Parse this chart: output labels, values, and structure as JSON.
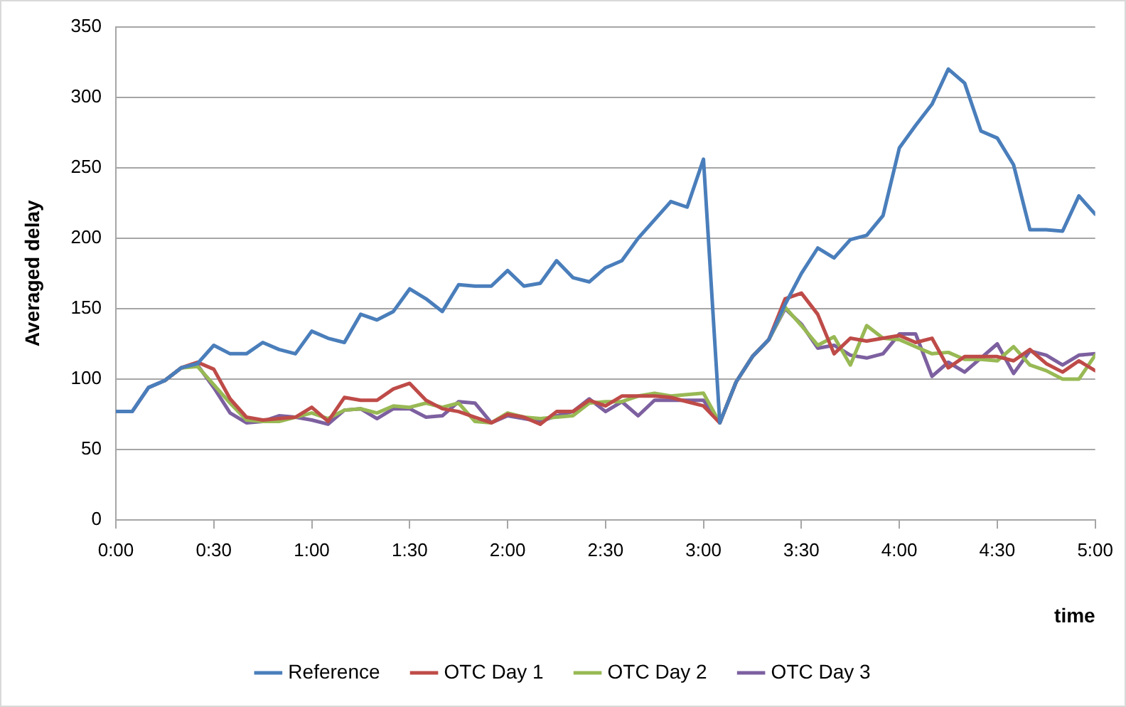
{
  "chart_data": {
    "type": "line",
    "xlabel": "time",
    "ylabel": "Averaged delay",
    "x": [
      0,
      0.0833,
      0.1667,
      0.25,
      0.3333,
      0.4167,
      0.5,
      0.5833,
      0.6667,
      0.75,
      0.8333,
      0.9167,
      1,
      1.0833,
      1.1667,
      1.25,
      1.3333,
      1.4167,
      1.5,
      1.5833,
      1.6667,
      1.75,
      1.8333,
      1.9167,
      2,
      2.0833,
      2.1667,
      2.25,
      2.3333,
      2.4167,
      2.5,
      2.5833,
      2.6667,
      2.75,
      2.8333,
      2.9167,
      3,
      3.0833,
      3.1667,
      3.25,
      3.3333,
      3.4167,
      3.5,
      3.5833,
      3.6667,
      3.75,
      3.8333,
      3.9167,
      4,
      4.0833,
      4.1667,
      4.25,
      4.3333,
      4.4167,
      4.5,
      4.5833,
      4.6667,
      4.75,
      4.8333,
      4.9167,
      5
    ],
    "series": [
      {
        "name": "Reference",
        "color": "#4a7ebb",
        "values": [
          77,
          77,
          94,
          99,
          108,
          111,
          124,
          118,
          118,
          126,
          121,
          118,
          134,
          129,
          126,
          146,
          142,
          148,
          164,
          157,
          148,
          167,
          166,
          166,
          177,
          166,
          168,
          184,
          172,
          169,
          179,
          184,
          200,
          213,
          226,
          222,
          256,
          69,
          98,
          116,
          128,
          153,
          175,
          193,
          186,
          199,
          202,
          216,
          264,
          280,
          295,
          320,
          310,
          276,
          271,
          252,
          206,
          206,
          205,
          230,
          217
        ]
      },
      {
        "name": "OTC Day 1",
        "color": "#be4b48",
        "values": [
          null,
          null,
          null,
          99,
          108,
          112,
          107,
          86,
          73,
          71,
          72,
          73,
          80,
          70,
          87,
          85,
          85,
          93,
          97,
          85,
          79,
          77,
          73,
          69,
          75,
          73,
          68,
          77,
          77,
          85,
          81,
          88,
          88,
          88,
          87,
          84,
          81,
          69,
          98,
          116,
          128,
          157,
          161,
          146,
          118,
          129,
          127,
          129,
          131,
          126,
          129,
          108,
          116,
          116,
          116,
          113,
          121,
          111,
          105,
          113,
          106
        ]
      },
      {
        "name": "OTC Day 2",
        "color": "#98b954",
        "values": [
          null,
          null,
          null,
          99,
          108,
          109,
          96,
          83,
          71,
          70,
          70,
          73,
          76,
          72,
          78,
          79,
          76,
          81,
          80,
          83,
          80,
          83,
          70,
          69,
          76,
          73,
          72,
          73,
          74,
          83,
          84,
          84,
          88,
          90,
          88,
          89,
          90,
          69,
          98,
          116,
          128,
          151,
          138,
          124,
          130,
          110,
          138,
          129,
          128,
          123,
          118,
          119,
          114,
          114,
          113,
          123,
          110,
          106,
          100,
          100,
          117
        ]
      },
      {
        "name": "OTC Day 3",
        "color": "#7d60a0",
        "values": [
          77,
          77,
          94,
          99,
          108,
          110,
          94,
          76,
          69,
          70,
          74,
          73,
          71,
          68,
          78,
          79,
          72,
          79,
          79,
          73,
          74,
          84,
          83,
          69,
          74,
          72,
          70,
          74,
          77,
          86,
          77,
          84,
          74,
          85,
          85,
          85,
          85,
          69,
          98,
          116,
          128,
          150,
          139,
          122,
          124,
          117,
          115,
          118,
          132,
          132,
          102,
          112,
          105,
          115,
          125,
          104,
          120,
          117,
          110,
          117,
          118
        ]
      }
    ],
    "xlim": [
      0,
      5
    ],
    "xticks": [
      {
        "value": 0,
        "label": "0:00"
      },
      {
        "value": 0.5,
        "label": "0:30"
      },
      {
        "value": 1,
        "label": "1:00"
      },
      {
        "value": 1.5,
        "label": "1:30"
      },
      {
        "value": 2,
        "label": "2:00"
      },
      {
        "value": 2.5,
        "label": "2:30"
      },
      {
        "value": 3,
        "label": "3:00"
      },
      {
        "value": 3.5,
        "label": "3:30"
      },
      {
        "value": 4,
        "label": "4:00"
      },
      {
        "value": 4.5,
        "label": "4:30"
      },
      {
        "value": 5,
        "label": "5:00"
      }
    ],
    "ylim": [
      0,
      350
    ],
    "yticks": [
      0,
      50,
      100,
      150,
      200,
      250,
      300,
      350
    ],
    "grid": "y",
    "legend": "bottom",
    "marker": "none",
    "line_style": "solid"
  }
}
